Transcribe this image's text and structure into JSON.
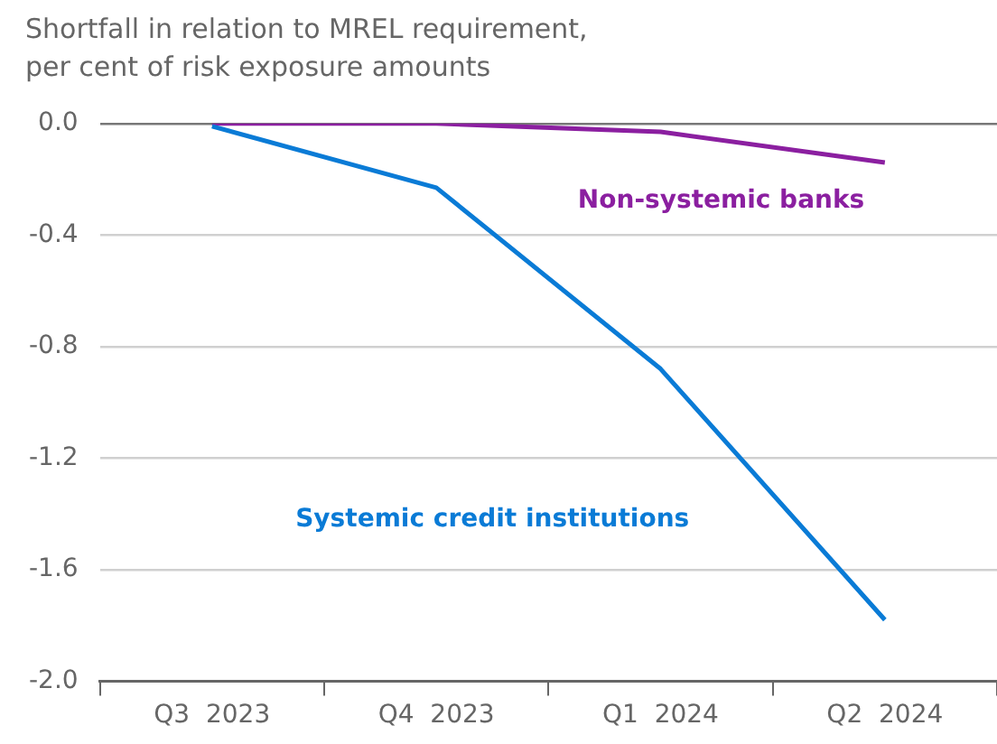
{
  "chart_data": {
    "type": "line",
    "ylabel": "Shortfall in relation to MREL requirement, per cent of risk exposure amounts",
    "categories": [
      "Q3  2023",
      "Q4  2023",
      "Q1  2024",
      "Q2  2024"
    ],
    "series": [
      {
        "name": "Systemic credit institutions",
        "color": "#0a7bd6",
        "values": [
          -0.01,
          -0.23,
          -0.88,
          -1.78
        ]
      },
      {
        "name": "Non-systemic banks",
        "color": "#8b1fa0",
        "values": [
          0.0,
          0.0,
          -0.03,
          -0.14
        ]
      }
    ],
    "ylim": [
      -2.0,
      0.0
    ],
    "yticks": [
      {
        "value": 0,
        "label": "0.0"
      },
      -0.4,
      -0.8,
      -1.2,
      -1.6,
      {
        "value": -2,
        "label": "-2.0"
      }
    ],
    "grid": "y",
    "legend": false,
    "marker": "none",
    "line_style": "solid"
  }
}
